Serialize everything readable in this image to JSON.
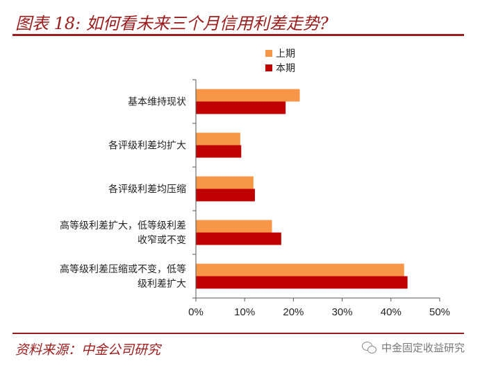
{
  "header": {
    "title": "图表 18:  如何看未来三个月信用利差走势?"
  },
  "legend": {
    "items": [
      {
        "label": "上期",
        "color": "#f79646"
      },
      {
        "label": "本期",
        "color": "#c00000"
      }
    ]
  },
  "chart_data": {
    "type": "bar",
    "orientation": "horizontal",
    "categories": [
      [
        "基本维持现状"
      ],
      [
        "各评级利差均扩大"
      ],
      [
        "各评级利差均压缩"
      ],
      [
        "高等级利差扩大，低等级利差",
        "收窄或不变"
      ],
      [
        "高等级利差压缩或不变，低等",
        "级利差扩大"
      ]
    ],
    "series": [
      {
        "name": "上期",
        "color": "#f79646",
        "values": [
          21.3,
          9.1,
          11.8,
          15.6,
          42.7
        ]
      },
      {
        "name": "本期",
        "color": "#c00000",
        "values": [
          18.4,
          9.3,
          12.1,
          17.5,
          43.4
        ]
      }
    ],
    "xlim": [
      0,
      50
    ],
    "xticks": [
      0,
      10,
      20,
      30,
      40,
      50
    ],
    "xtick_labels": [
      "0%",
      "10%",
      "20%",
      "30%",
      "40%",
      "50%"
    ],
    "grid": false,
    "legend_position": "top-center"
  },
  "footer": {
    "source": "资料来源：中金公司研究",
    "watermark": "中金固定收益研究"
  }
}
